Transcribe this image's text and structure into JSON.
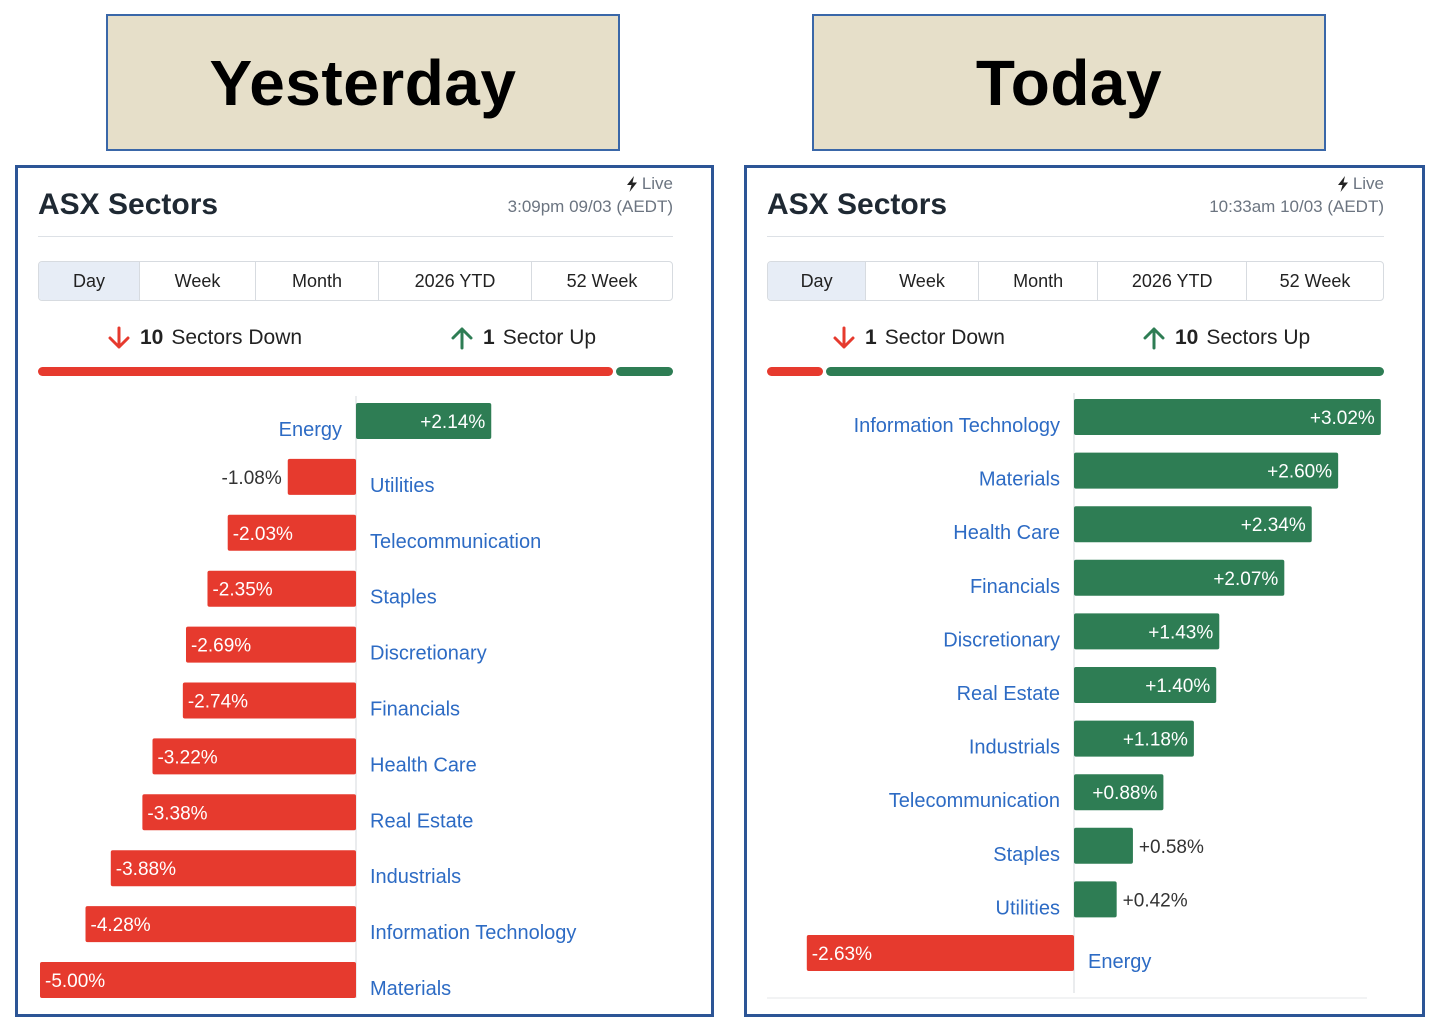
{
  "headers": {
    "left": "Yesterday",
    "right": "Today"
  },
  "colors": {
    "negative": "#e63a2e",
    "positive": "#2e7d54",
    "label": "#2d6bc4",
    "header_bg": "#e6dfc9",
    "border": "#2c5596"
  },
  "panels": [
    {
      "title": "ASX Sectors",
      "live": "Live",
      "timestamp": "3:09pm 09/03 (AEDT)",
      "tabs": [
        "Day",
        "Week",
        "Month",
        "2026 YTD",
        "52 Week"
      ],
      "active_tab": "Day",
      "down_count": "10",
      "down_text": "Sectors Down",
      "up_count": "1",
      "up_text": "Sector Up",
      "down_sectors": 10,
      "up_sectors": 1
    },
    {
      "title": "ASX Sectors",
      "live": "Live",
      "timestamp": "10:33am 10/03 (AEDT)",
      "tabs": [
        "Day",
        "Week",
        "Month",
        "2026 YTD",
        "52 Week"
      ],
      "active_tab": "Day",
      "down_count": "1",
      "down_text": "Sector Down",
      "up_count": "10",
      "up_text": "Sectors Up",
      "down_sectors": 1,
      "up_sectors": 10
    }
  ],
  "chart_data": [
    {
      "type": "bar",
      "orientation": "horizontal",
      "unit": "%",
      "categories": [
        "Energy",
        "Utilities",
        "Telecommunication",
        "Staples",
        "Discretionary",
        "Financials",
        "Health Care",
        "Real Estate",
        "Industrials",
        "Information Technology",
        "Materials"
      ],
      "values": [
        2.14,
        -1.08,
        -2.03,
        -2.35,
        -2.69,
        -2.74,
        -3.22,
        -3.38,
        -3.88,
        -4.28,
        -5.0
      ],
      "labels": [
        "+2.14%",
        "-1.08%",
        "-2.03%",
        "-2.35%",
        "-2.69%",
        "-2.74%",
        "-3.22%",
        "-3.38%",
        "-3.88%",
        "-4.28%",
        "-5.00%"
      ]
    },
    {
      "type": "bar",
      "orientation": "horizontal",
      "unit": "%",
      "categories": [
        "Information Technology",
        "Materials",
        "Health Care",
        "Financials",
        "Discretionary",
        "Real Estate",
        "Industrials",
        "Telecommunication",
        "Staples",
        "Utilities",
        "Energy"
      ],
      "values": [
        3.02,
        2.6,
        2.34,
        2.07,
        1.43,
        1.4,
        1.18,
        0.88,
        0.58,
        0.42,
        -2.63
      ],
      "labels": [
        "+3.02%",
        "+2.60%",
        "+2.34%",
        "+2.07%",
        "+1.43%",
        "+1.40%",
        "+1.18%",
        "+0.88%",
        "+0.58%",
        "+0.42%",
        "-2.63%"
      ]
    }
  ]
}
